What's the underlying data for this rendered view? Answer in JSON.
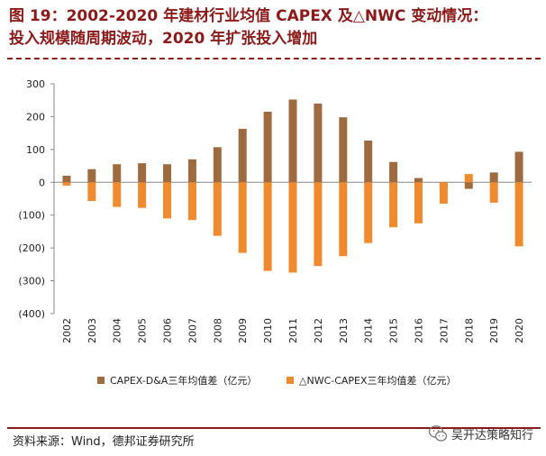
{
  "header": {
    "title_line1": "图 19：2002-2020 年建材行业均值 CAPEX 及△NWC 变动情况：",
    "title_line2": "投入规模随周期波动，2020 年扩张投入增加"
  },
  "footer": {
    "source": "资料来源：Wind，德邦证券研究所",
    "watermark": "吴开达策略知行"
  },
  "colors": {
    "title": "#8B1A1A",
    "capex": "#9E6A3F",
    "nwc": "#F08A2E"
  },
  "chart_data": {
    "type": "bar",
    "title": "",
    "categories": [
      "2002",
      "2003",
      "2004",
      "2005",
      "2006",
      "2007",
      "2008",
      "2009",
      "2010",
      "2011",
      "2012",
      "2013",
      "2014",
      "2015",
      "2016",
      "2017",
      "2018",
      "2019",
      "2020"
    ],
    "series": [
      {
        "name": "CAPEX-D&A三年均值差（亿元）",
        "values": [
          20,
          40,
          55,
          58,
          55,
          70,
          107,
          163,
          215,
          252,
          240,
          198,
          127,
          62,
          13,
          -20,
          -20,
          30,
          93
        ]
      },
      {
        "name": "△NWC-CAPEX三年均值差（亿元）",
        "values": [
          -10,
          -57,
          -75,
          -78,
          -110,
          -115,
          -163,
          -215,
          -270,
          -275,
          -255,
          -225,
          -185,
          -137,
          -125,
          -65,
          25,
          -62,
          -195
        ]
      }
    ],
    "ylim": [
      -400,
      300
    ],
    "yticks": [
      300,
      200,
      100,
      0,
      -100,
      -200,
      -300,
      -400
    ],
    "ytick_labels": [
      "300",
      "200",
      "100",
      "0",
      "(100)",
      "(200)",
      "(300)",
      "(400)"
    ],
    "xlabel": "",
    "ylabel": "",
    "legend_position": "bottom"
  }
}
